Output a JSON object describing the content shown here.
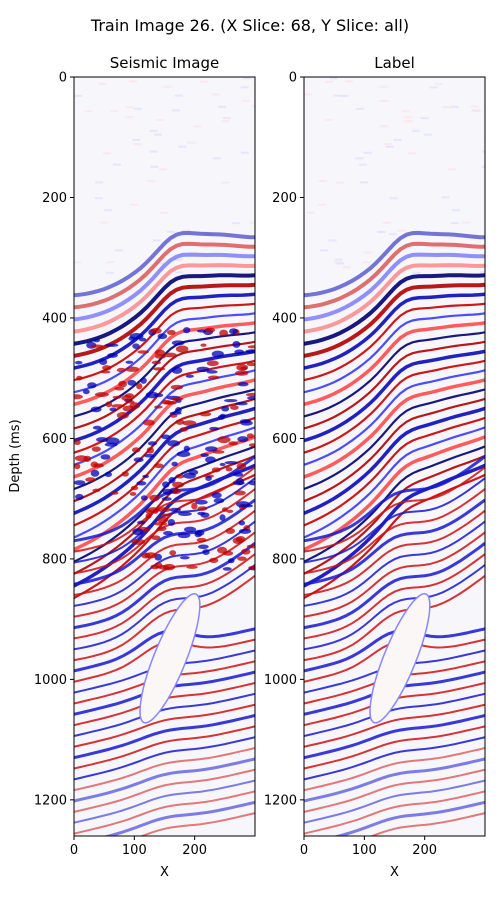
{
  "figure": {
    "suptitle": "Train Image 26. (X Slice: 68, Y Slice: all)"
  },
  "chart_data": [
    {
      "type": "heatmap",
      "title": "Seismic Image",
      "xlabel": "X",
      "ylabel": "Depth (ms)",
      "xlim": [
        0,
        300
      ],
      "ylim": [
        1260,
        0
      ],
      "x_ticks": [
        0,
        100,
        200
      ],
      "y_ticks": [
        0,
        200,
        400,
        600,
        800,
        1000,
        1200
      ],
      "colormap": "seismic",
      "colors": {
        "negative": "#0000cc",
        "zero": "#ffffff",
        "positive": "#cc0000"
      },
      "features": {
        "top_reflector_depth_at_x0": 390,
        "top_reflector_depth_at_x300": 285,
        "chaotic_zone": [
          420,
          820
        ],
        "salt_body_top": 850,
        "salt_body_bottom": 1080
      }
    },
    {
      "type": "heatmap",
      "title": "Label",
      "xlabel": "X",
      "ylabel": "",
      "xlim": [
        0,
        300
      ],
      "ylim": [
        1260,
        0
      ],
      "x_ticks": [
        0,
        100,
        200
      ],
      "y_ticks": [
        0,
        200,
        400,
        600,
        800,
        1000,
        1200
      ],
      "colormap": "seismic",
      "colors": {
        "negative": "#0000cc",
        "zero": "#ffffff",
        "positive": "#cc0000"
      },
      "features": {
        "top_reflector_depth_at_x0": 390,
        "top_reflector_depth_at_x300": 285,
        "salt_body_top": 850,
        "salt_body_bottom": 1080
      }
    }
  ]
}
